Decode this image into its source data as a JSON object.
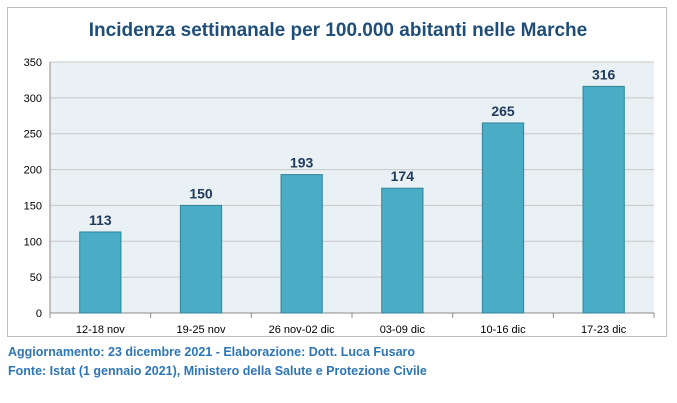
{
  "chart_data": {
    "type": "bar",
    "title": "Incidenza settimanale per 100.000 abitanti nelle Marche",
    "xlabel": "",
    "ylabel": "",
    "categories": [
      "12-18 nov",
      "19-25 nov",
      "26 nov-02 dic",
      "03-09 dic",
      "10-16 dic",
      "17-23 dic"
    ],
    "values": [
      113,
      150,
      193,
      174,
      265,
      316
    ],
    "data_labels": [
      "113",
      "150",
      "193",
      "174",
      "265",
      "316"
    ],
    "ylim": [
      0,
      350
    ],
    "yticks": [
      0,
      50,
      100,
      150,
      200,
      250,
      300,
      350
    ],
    "grid": true,
    "legend": "none"
  },
  "colors": {
    "bar_fill": "#4bacc6",
    "bar_stroke": "#31849b",
    "plot_background": "#eaf1f4",
    "gridline": "#c8c8c8",
    "title": "#1f4e79",
    "data_label": "#1f3a5a",
    "footer_text": "#2e75b6"
  },
  "footer": {
    "line1": "Aggiornamento: 23 dicembre 2021 - Elaborazione: Dott. Luca Fusaro",
    "line2": "Fonte: Istat (1 gennaio 2021), Ministero della Salute e Protezione Civile"
  }
}
